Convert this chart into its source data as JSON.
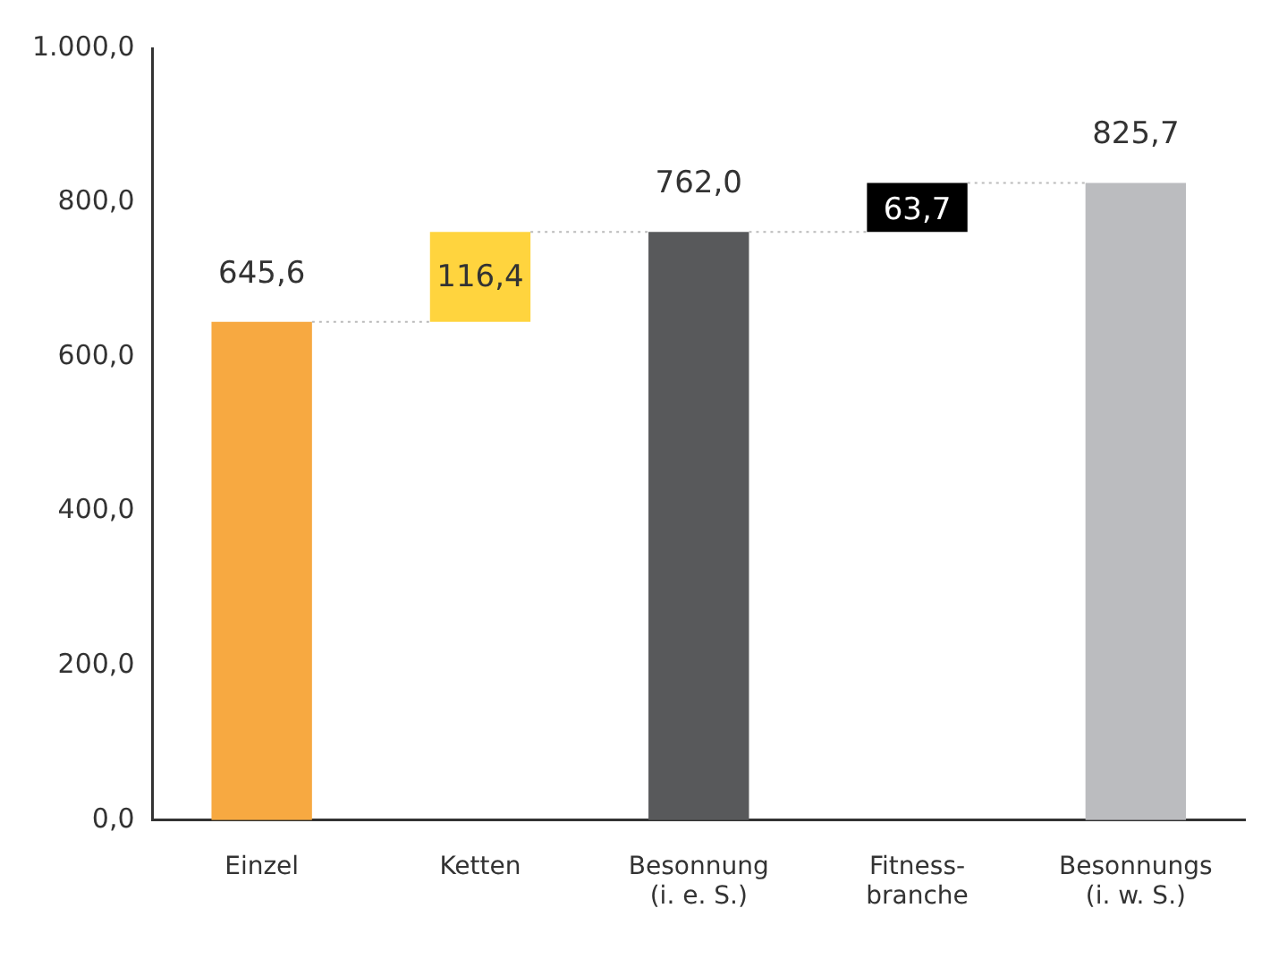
{
  "chart_data": {
    "type": "bar",
    "categories": [
      "Einzel",
      "Ketten",
      "Besonnung\n(i. e. S.)",
      "Fitness-\nbranche",
      "Besonnungs\n(i. w. S.)"
    ],
    "values": [
      645.6,
      116.4,
      762.0,
      63.7,
      825.7
    ],
    "base": [
      0,
      645.6,
      0,
      762.0,
      0
    ],
    "colors": [
      "#f7a941",
      "#ffd43e",
      "#58595b",
      "#000000",
      "#bbbcbf"
    ],
    "ylim": [
      0,
      1000
    ],
    "yticks": [
      {
        "value": 0,
        "label": "0,0"
      },
      {
        "value": 200,
        "label": "200,0"
      },
      {
        "value": 400,
        "label": "400,0"
      },
      {
        "value": 600,
        "label": "600,0"
      },
      {
        "value": 800,
        "label": "800,0"
      },
      {
        "value": 1000,
        "label": "1.000,0"
      }
    ],
    "value_labels": [
      "645,6",
      "116,4",
      "762,0",
      "63,7",
      "825,7"
    ],
    "grid": false,
    "legend": false
  }
}
